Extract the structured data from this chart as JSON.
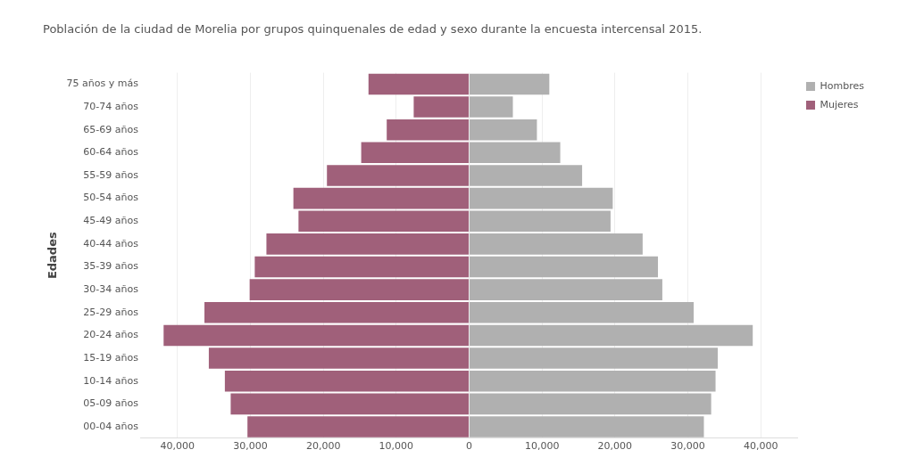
{
  "chart_data": {
    "type": "bar",
    "orientation": "horizontal",
    "stacked": true,
    "title": "Población de la ciudad de Morelia por grupos quinquenales de edad y sexo durante la encuesta intercensal 2015.",
    "ylabel": "Edades",
    "categories": [
      "75 años y más",
      "70-74 años",
      "65-69 años",
      "60-64 años",
      "55-59 años",
      "50-54 años",
      "45-49 años",
      "40-44 años",
      "35-39 años",
      "30-34 años",
      "25-29 años",
      "20-24 años",
      "15-19 años",
      "10-14 años",
      "05-09 años",
      "00-04 años"
    ],
    "series": [
      {
        "name": "Hombres",
        "color": "#b0b0b0",
        "values": [
          11000,
          6000,
          9300,
          12500,
          15500,
          19700,
          19400,
          23800,
          25900,
          26500,
          30800,
          38900,
          34100,
          33800,
          33200,
          32200
        ]
      },
      {
        "name": "Mujeres",
        "color": "#a0607a",
        "values": [
          -13800,
          -7600,
          -11300,
          -14800,
          -19500,
          -24100,
          -23400,
          -27800,
          -29400,
          -30100,
          -36300,
          -41900,
          -35700,
          -33500,
          -32700,
          -30400
        ]
      }
    ],
    "xlim": [
      -45000,
      45000
    ],
    "xticks": [
      {
        "value": -40000,
        "label": "40,000"
      },
      {
        "value": -30000,
        "label": "30,000"
      },
      {
        "value": -20000,
        "label": "20,000"
      },
      {
        "value": -10000,
        "label": "10,000"
      },
      0,
      {
        "value": 10000,
        "label": "10,000"
      },
      {
        "value": 20000,
        "label": "20,000"
      },
      {
        "value": 30000,
        "label": "30,000"
      },
      {
        "value": 40000,
        "label": "40,000"
      }
    ],
    "grid": "x",
    "legend": "top right"
  }
}
